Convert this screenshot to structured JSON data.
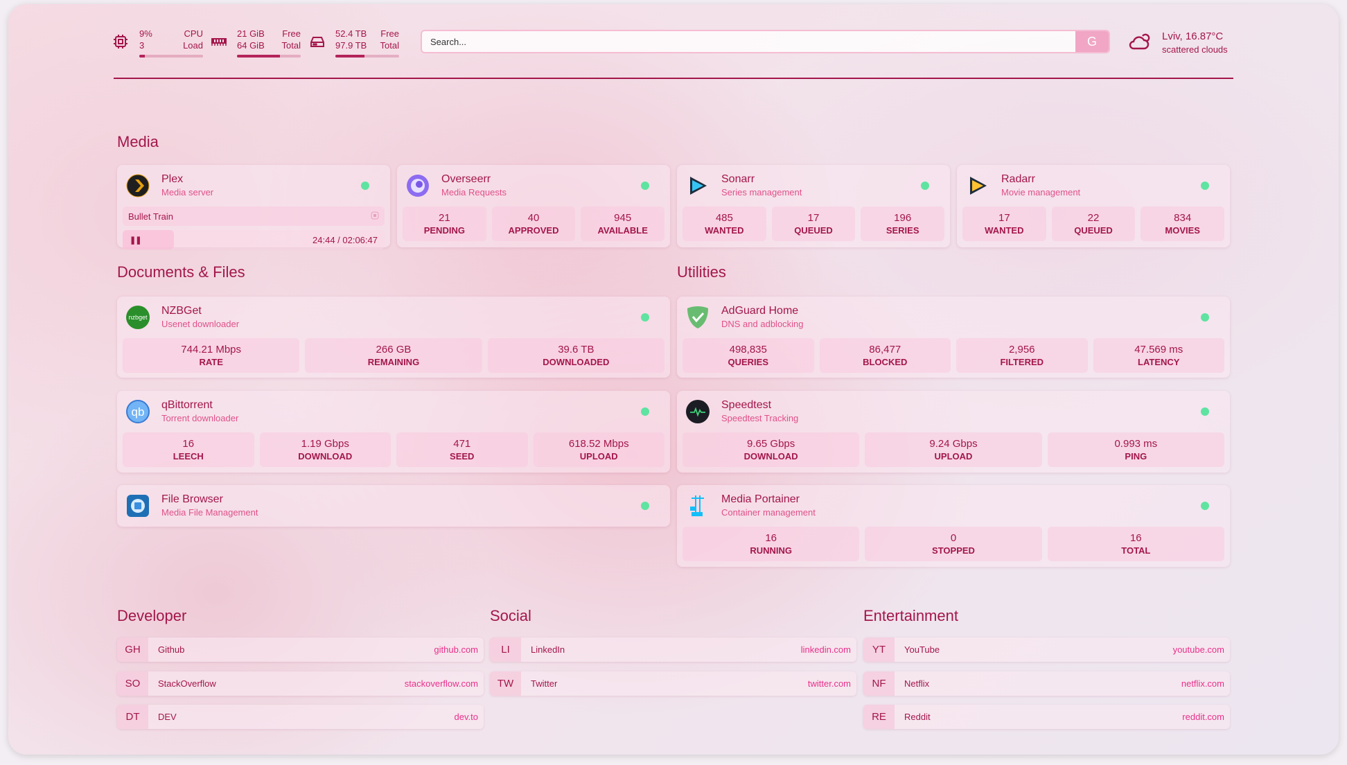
{
  "header": {
    "cpu": {
      "value": "9%",
      "sub": "3",
      "label1": "CPU",
      "label2": "Load",
      "fill": 0.09,
      "icon": "cpu-icon"
    },
    "memory": {
      "value": "21 GiB",
      "sub": "64 GiB",
      "label1": "Free",
      "label2": "Total",
      "fill": 0.67,
      "icon": "memory-icon"
    },
    "disk": {
      "value": "52.4 TB",
      "sub": "97.9 TB",
      "label1": "Free",
      "label2": "Total",
      "fill": 0.46,
      "icon": "disk-icon"
    },
    "search": {
      "placeholder": "Search...",
      "button": "G"
    },
    "weather": {
      "location_temp": "Lviv, 16.87°C",
      "description": "scattered clouds",
      "icon": "cloud-sun-icon"
    }
  },
  "colors": {
    "accent": "#a3164a",
    "secondary": "#e0508a",
    "status_ok": "#5fe3a1",
    "link": "#e8308a"
  },
  "media": {
    "title": "Media",
    "services": [
      {
        "name": "Plex",
        "desc": "Media server",
        "icon": "plex-icon",
        "now_playing": {
          "title": "Bullet Train",
          "time": "24:44 / 02:06:47",
          "progress": 0.195
        }
      },
      {
        "name": "Overseerr",
        "desc": "Media Requests",
        "icon": "overseerr-icon",
        "stats": [
          {
            "v": "21",
            "l": "PENDING"
          },
          {
            "v": "40",
            "l": "APPROVED"
          },
          {
            "v": "945",
            "l": "AVAILABLE"
          }
        ]
      },
      {
        "name": "Sonarr",
        "desc": "Series management",
        "icon": "sonarr-icon",
        "stats": [
          {
            "v": "485",
            "l": "WANTED"
          },
          {
            "v": "17",
            "l": "QUEUED"
          },
          {
            "v": "196",
            "l": "SERIES"
          }
        ]
      },
      {
        "name": "Radarr",
        "desc": "Movie management",
        "icon": "radarr-icon",
        "stats": [
          {
            "v": "17",
            "l": "WANTED"
          },
          {
            "v": "22",
            "l": "QUEUED"
          },
          {
            "v": "834",
            "l": "MOVIES"
          }
        ]
      }
    ]
  },
  "documents": {
    "title": "Documents & Files",
    "services": [
      {
        "name": "NZBGet",
        "desc": "Usenet downloader",
        "icon": "nzbget-icon",
        "stats": [
          {
            "v": "744.21 Mbps",
            "l": "RATE"
          },
          {
            "v": "266 GB",
            "l": "REMAINING"
          },
          {
            "v": "39.6 TB",
            "l": "DOWNLOADED"
          }
        ]
      },
      {
        "name": "qBittorrent",
        "desc": "Torrent downloader",
        "icon": "qbittorrent-icon",
        "stats": [
          {
            "v": "16",
            "l": "LEECH"
          },
          {
            "v": "1.19 Gbps",
            "l": "DOWNLOAD"
          },
          {
            "v": "471",
            "l": "SEED"
          },
          {
            "v": "618.52 Mbps",
            "l": "UPLOAD"
          }
        ]
      },
      {
        "name": "File Browser",
        "desc": "Media File Management",
        "icon": "filebrowser-icon"
      }
    ]
  },
  "utilities": {
    "title": "Utilities",
    "services": [
      {
        "name": "AdGuard Home",
        "desc": "DNS and adblocking",
        "icon": "adguard-icon",
        "stats": [
          {
            "v": "498,835",
            "l": "QUERIES"
          },
          {
            "v": "86,477",
            "l": "BLOCKED"
          },
          {
            "v": "2,956",
            "l": "FILTERED"
          },
          {
            "v": "47.569 ms",
            "l": "LATENCY"
          }
        ]
      },
      {
        "name": "Speedtest",
        "desc": "Speedtest Tracking",
        "icon": "speedtest-icon",
        "stats": [
          {
            "v": "9.65 Gbps",
            "l": "DOWNLOAD"
          },
          {
            "v": "9.24 Gbps",
            "l": "UPLOAD"
          },
          {
            "v": "0.993 ms",
            "l": "PING"
          }
        ]
      },
      {
        "name": "Media Portainer",
        "desc": "Container management",
        "icon": "portainer-icon",
        "stats": [
          {
            "v": "16",
            "l": "RUNNING"
          },
          {
            "v": "0",
            "l": "STOPPED"
          },
          {
            "v": "16",
            "l": "TOTAL"
          }
        ]
      }
    ]
  },
  "bookmarks": [
    {
      "title": "Developer",
      "links": [
        {
          "abbr": "GH",
          "name": "Github",
          "url": "github.com"
        },
        {
          "abbr": "SO",
          "name": "StackOverflow",
          "url": "stackoverflow.com"
        },
        {
          "abbr": "DT",
          "name": "DEV",
          "url": "dev.to"
        }
      ]
    },
    {
      "title": "Social",
      "links": [
        {
          "abbr": "LI",
          "name": "LinkedIn",
          "url": "linkedin.com"
        },
        {
          "abbr": "TW",
          "name": "Twitter",
          "url": "twitter.com"
        }
      ]
    },
    {
      "title": "Entertainment",
      "links": [
        {
          "abbr": "YT",
          "name": "YouTube",
          "url": "youtube.com"
        },
        {
          "abbr": "NF",
          "name": "Netflix",
          "url": "netflix.com"
        },
        {
          "abbr": "RE",
          "name": "Reddit",
          "url": "reddit.com"
        }
      ]
    }
  ]
}
